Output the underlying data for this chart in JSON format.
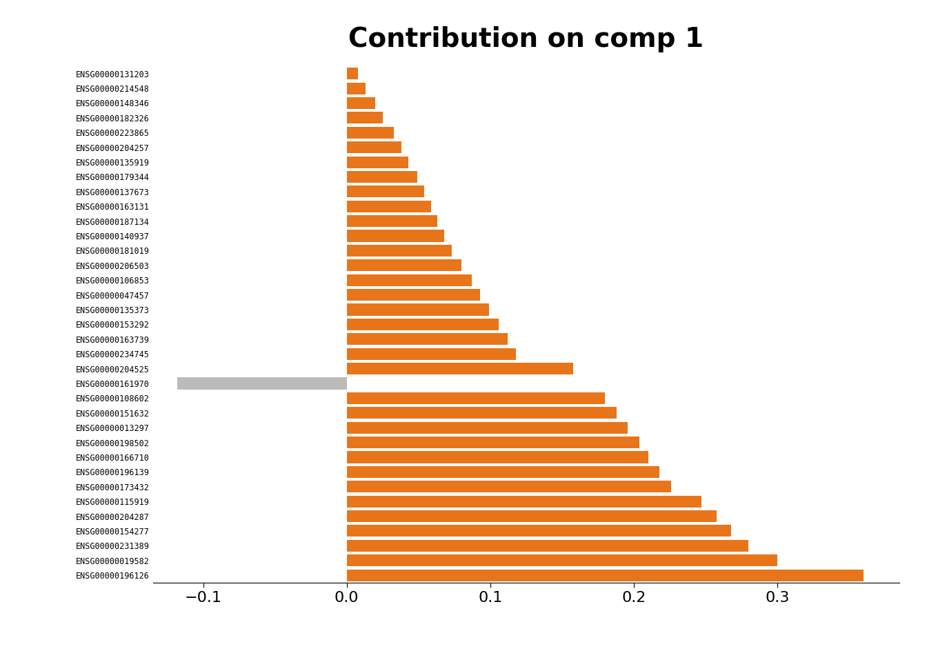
{
  "title": "Contribution on comp 1",
  "title_fontsize": 28,
  "title_fontweight": "bold",
  "bar_color": "#E8751A",
  "gray_color": "#BBBBBB",
  "background_color": "#FFFFFF",
  "xlim": [
    -0.135,
    0.385
  ],
  "xticks": [
    -0.1,
    0.0,
    0.1,
    0.2,
    0.3
  ],
  "xlabel_fontsize": 16,
  "ylabel_fontsize": 8.5,
  "categories": [
    "ENSG00000131203",
    "ENSG00000214548",
    "ENSG00000148346",
    "ENSG00000182326",
    "ENSG00000223865",
    "ENSG00000204257",
    "ENSG00000135919",
    "ENSG00000179344",
    "ENSG00000137673",
    "ENSG00000163131",
    "ENSG00000187134",
    "ENSG00000140937",
    "ENSG00000181019",
    "ENSG00000206503",
    "ENSG00000106853",
    "ENSG00000047457",
    "ENSG00000135373",
    "ENSG00000153292",
    "ENSG00000163739",
    "ENSG00000234745",
    "ENSG00000204525",
    "ENSG00000161970",
    "ENSG00000108602",
    "ENSG00000151632",
    "ENSG00000013297",
    "ENSG00000198502",
    "ENSG00000166710",
    "ENSG00000196139",
    "ENSG00000173432",
    "ENSG00000115919",
    "ENSG00000204287",
    "ENSG00000154277",
    "ENSG00000231389",
    "ENSG00000019582",
    "ENSG00000196126"
  ],
  "values": [
    0.008,
    0.013,
    0.02,
    0.025,
    0.033,
    0.038,
    0.043,
    0.049,
    0.054,
    0.059,
    0.063,
    0.068,
    0.073,
    0.08,
    0.087,
    0.093,
    0.099,
    0.106,
    0.112,
    0.118,
    0.158,
    -0.118,
    0.18,
    0.188,
    0.196,
    0.204,
    0.21,
    0.218,
    0.226,
    0.247,
    0.258,
    0.268,
    0.28,
    0.3,
    0.36
  ],
  "is_gray": [
    false,
    false,
    false,
    false,
    false,
    false,
    false,
    false,
    false,
    false,
    false,
    false,
    false,
    false,
    false,
    false,
    false,
    false,
    false,
    false,
    false,
    true,
    false,
    false,
    false,
    false,
    false,
    false,
    false,
    false,
    false,
    false,
    false,
    false,
    false
  ]
}
